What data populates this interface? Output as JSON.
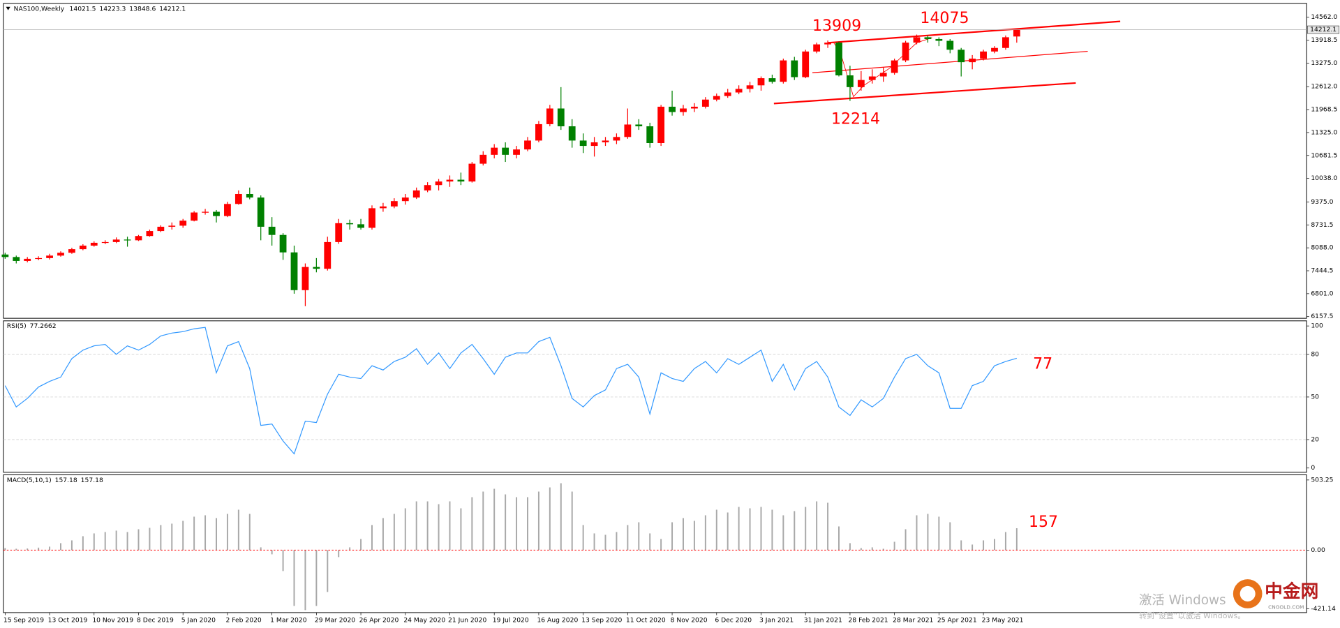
{
  "chart_data": [
    {
      "type": "candlestick",
      "title": "NAS100,Weekly",
      "categories": [
        "15 Sep 2019",
        null,
        null,
        null,
        "13 Oct 2019",
        null,
        null,
        null,
        "10 Nov 2019",
        null,
        null,
        null,
        "8 Dec 2019",
        null,
        null,
        null,
        "5 Jan 2020",
        null,
        null,
        null,
        "2 Feb 2020",
        null,
        null,
        null,
        "1 Mar 2020",
        null,
        null,
        null,
        "29 Mar 2020",
        null,
        null,
        null,
        "26 Apr 2020",
        null,
        null,
        null,
        "24 May 2020",
        null,
        null,
        null,
        "21 Jun 2020",
        null,
        null,
        null,
        "19 Jul 2020",
        null,
        null,
        null,
        "16 Aug 2020",
        null,
        null,
        null,
        "13 Sep 2020",
        null,
        null,
        null,
        "11 Oct 2020",
        null,
        null,
        null,
        "8 Nov 2020",
        null,
        null,
        null,
        "6 Dec 2020",
        null,
        null,
        null,
        "3 Jan 2021",
        null,
        null,
        null,
        "31 Jan 2021",
        null,
        null,
        null,
        "28 Feb 2021",
        null,
        null,
        null,
        "28 Mar 2021",
        null,
        null,
        null,
        "25 Apr 2021",
        null,
        null,
        null,
        "23 May 2021",
        null,
        null,
        null
      ],
      "open": [
        7900,
        7830,
        7720,
        7780,
        7800,
        7870,
        7950,
        8050,
        8150,
        8230,
        8250,
        8320,
        8300,
        8420,
        8560,
        8680,
        8710,
        8850,
        9080,
        9100,
        8980,
        9320,
        9600,
        9500,
        8680,
        8450,
        7960,
        6900,
        7550,
        7500,
        8250,
        8780,
        8750,
        8650,
        9200,
        9250,
        9400,
        9500,
        9700,
        9850,
        9950,
        10000,
        9950,
        10450,
        10700,
        10900,
        10700,
        10850,
        11100,
        11560,
        12000,
        11500,
        11100,
        10950,
        11050,
        11100,
        11200,
        11550,
        11500,
        11030,
        12050,
        11900,
        12000,
        12050,
        12250,
        12350,
        12450,
        12550,
        12650,
        12850,
        12750,
        13350,
        12880,
        13600,
        13800,
        13850,
        12930,
        12600,
        12800,
        12900,
        13000,
        13350,
        13850,
        14000,
        13950,
        13900,
        13650,
        13300,
        13400,
        13600,
        13700,
        14021.5
      ],
      "high": [
        7950,
        7870,
        7830,
        7850,
        7920,
        7990,
        8090,
        8190,
        8270,
        8300,
        8380,
        8400,
        8450,
        8600,
        8720,
        8800,
        8900,
        9120,
        9180,
        9150,
        9380,
        9700,
        9780,
        9560,
        8950,
        8500,
        8150,
        7650,
        7800,
        8400,
        8900,
        8880,
        8900,
        9280,
        9350,
        9480,
        9600,
        9780,
        9930,
        10020,
        10120,
        10200,
        10500,
        10800,
        11000,
        11050,
        10950,
        11200,
        11650,
        12100,
        12600,
        11700,
        11300,
        11200,
        11200,
        11300,
        12000,
        11700,
        11600,
        12100,
        12500,
        12100,
        12150,
        12320,
        12420,
        12550,
        12650,
        12750,
        12900,
        12950,
        13400,
        13450,
        13650,
        13850,
        13909,
        13880,
        13200,
        13050,
        13100,
        13150,
        13400,
        13900,
        14075,
        14050,
        14000,
        13950,
        13700,
        13500,
        13650,
        13750,
        14050,
        14223.3
      ],
      "low": [
        7780,
        7650,
        7680,
        7740,
        7760,
        7840,
        7920,
        8020,
        8120,
        8190,
        8220,
        8120,
        8280,
        8400,
        8530,
        8600,
        8650,
        8830,
        9020,
        8800,
        8950,
        9300,
        9450,
        8300,
        8150,
        7750,
        6800,
        6450,
        7400,
        7450,
        8200,
        8600,
        8600,
        8600,
        9100,
        9200,
        9300,
        9460,
        9650,
        9700,
        9800,
        9850,
        9920,
        10400,
        10600,
        10500,
        10600,
        10800,
        11050,
        11500,
        11400,
        10900,
        10750,
        10650,
        10950,
        11000,
        11150,
        11400,
        10900,
        10950,
        11800,
        11800,
        11900,
        12000,
        12200,
        12300,
        12400,
        12450,
        12500,
        12700,
        12700,
        12800,
        12850,
        13550,
        13700,
        12900,
        12214,
        12500,
        12700,
        12750,
        12950,
        13300,
        13800,
        13850,
        13750,
        13550,
        12900,
        13100,
        13350,
        13550,
        13650,
        13848.6
      ],
      "close": [
        7830,
        7720,
        7780,
        7800,
        7870,
        7950,
        8050,
        8150,
        8230,
        8250,
        8320,
        8300,
        8420,
        8560,
        8680,
        8710,
        8850,
        9080,
        9100,
        8980,
        9320,
        9600,
        9500,
        8680,
        8450,
        7960,
        6900,
        7550,
        7500,
        8250,
        8780,
        8750,
        8650,
        9200,
        9250,
        9400,
        9500,
        9700,
        9850,
        9950,
        10000,
        9950,
        10450,
        10700,
        10900,
        10700,
        10850,
        11100,
        11560,
        12000,
        11500,
        11100,
        10950,
        11050,
        11100,
        11200,
        11550,
        11500,
        11030,
        12050,
        11900,
        12000,
        12050,
        12250,
        12350,
        12450,
        12550,
        12650,
        12850,
        12750,
        13350,
        12880,
        13600,
        13800,
        13850,
        12930,
        12600,
        12800,
        12900,
        13000,
        13350,
        13850,
        14000,
        13950,
        13900,
        13650,
        13300,
        13400,
        13600,
        13700,
        14000,
        14212.1
      ],
      "colors": {
        "up": "#ff0000",
        "down": "#008000"
      },
      "ylim": [
        6110,
        14950
      ],
      "yticks": [
        6157.5,
        {
          "value": 6801,
          "label": "6801.0"
        },
        7444.5,
        {
          "value": 8088,
          "label": "8088.0"
        },
        8731.5,
        {
          "value": 9375,
          "label": "9375.0"
        },
        {
          "value": 10038,
          "label": "10038.0"
        },
        10681.5,
        {
          "value": 11325,
          "label": "11325.0"
        },
        11968.5,
        {
          "value": 12612,
          "label": "12612.0"
        },
        {
          "value": 13275,
          "label": "13275.0"
        },
        13918.5,
        {
          "value": 14562,
          "label": "14562.0"
        }
      ],
      "annotations": [
        "13909",
        "14075",
        "12214"
      ]
    },
    {
      "type": "line",
      "title": "RSI(5)",
      "values": [
        58,
        43,
        49,
        57,
        61,
        64,
        77,
        83,
        86,
        87,
        80,
        86,
        83,
        87,
        93,
        95,
        96,
        98,
        99,
        67,
        86,
        89,
        70,
        30,
        31,
        19,
        10,
        33,
        32,
        52,
        66,
        64,
        63,
        72,
        69,
        75,
        78,
        84,
        73,
        81,
        70,
        81,
        87,
        77,
        66,
        78,
        81,
        81,
        89,
        92,
        72,
        49,
        43,
        51,
        55,
        70,
        73,
        64,
        38,
        67,
        63,
        61,
        70,
        75,
        67,
        77,
        73,
        78,
        83,
        61,
        73,
        55,
        70,
        75,
        64,
        43,
        37,
        48,
        43,
        49,
        64,
        77,
        80,
        72,
        67,
        42,
        42,
        58,
        61,
        72,
        75,
        77.2662
      ],
      "color": "#3399ff",
      "ylim": [
        -3,
        103.6
      ],
      "yticks": [
        0,
        20,
        50,
        80,
        100
      ],
      "grid": true,
      "annotations": [
        "77"
      ]
    },
    {
      "type": "bar",
      "title": "MACD(5,10,1)",
      "values": [
        15,
        10,
        12,
        18,
        25,
        50,
        70,
        100,
        120,
        130,
        140,
        130,
        150,
        160,
        180,
        190,
        210,
        240,
        250,
        230,
        260,
        290,
        260,
        20,
        -30,
        -150,
        -400,
        -430,
        -400,
        -300,
        -50,
        20,
        80,
        180,
        230,
        260,
        300,
        350,
        350,
        330,
        350,
        300,
        380,
        420,
        440,
        400,
        380,
        380,
        420,
        450,
        480,
        420,
        180,
        120,
        110,
        130,
        180,
        200,
        120,
        80,
        200,
        230,
        210,
        250,
        290,
        270,
        310,
        300,
        310,
        290,
        250,
        280,
        310,
        350,
        340,
        170,
        50,
        15,
        20,
        10,
        60,
        150,
        250,
        260,
        240,
        200,
        70,
        40,
        70,
        80,
        130,
        157.18
      ],
      "color": "#a8a8a8",
      "zero_line_color": "#ff0000",
      "ylim": [
        -448,
        540
      ],
      "yticks": [
        503.25,
        {
          "value": 0,
          "label": "0.00"
        },
        -421.14
      ],
      "annotations": [
        "157"
      ]
    }
  ],
  "watermark": {
    "line1": "激活 Windows",
    "line2": "转到“设置”以激活 Windows。",
    "logo": "中金网",
    "logo_sub": "CNGOLD.COM"
  }
}
